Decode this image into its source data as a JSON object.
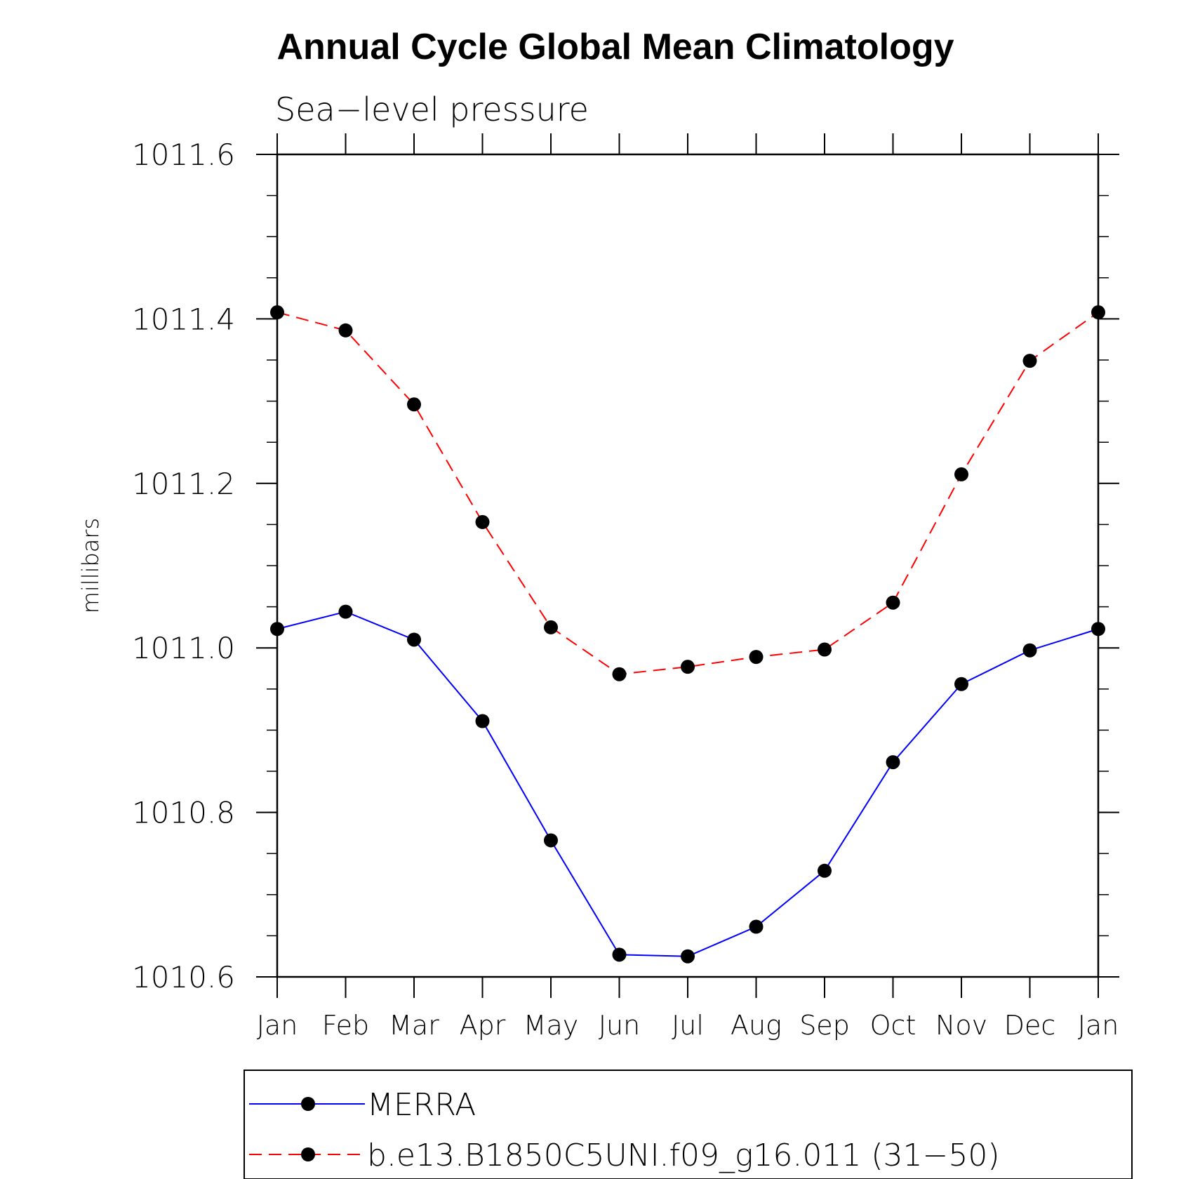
{
  "chart_data": {
    "type": "line",
    "title": "Annual Cycle Global Mean Climatology",
    "subtitle": "Sea−level pressure",
    "xlabel": "",
    "ylabel": "millibars",
    "categories": [
      "Jan",
      "Feb",
      "Mar",
      "Apr",
      "May",
      "Jun",
      "Jul",
      "Aug",
      "Sep",
      "Oct",
      "Nov",
      "Dec",
      "Jan"
    ],
    "ylim": [
      1010.6,
      1011.6
    ],
    "yticks": [
      1010.6,
      1010.8,
      1011.0,
      1011.2,
      1011.4,
      1011.6
    ],
    "ytick_labels": [
      "1010.6",
      "1010.8",
      "1011.0",
      "1011.2",
      "1011.4",
      "1011.6"
    ],
    "grid": false,
    "legend_position": "bottom",
    "series": [
      {
        "name": "MERRA",
        "color": "#0000ff",
        "dash": "solid",
        "marker": "dot",
        "values": [
          1011.023,
          1011.044,
          1011.01,
          1010.911,
          1010.766,
          1010.627,
          1010.625,
          1010.661,
          1010.729,
          1010.861,
          1010.956,
          1010.997,
          1011.023
        ]
      },
      {
        "name": "b.e13.B1850C5UNI.f09_g16.011 (31−50)",
        "color": "#ff0000",
        "dash": "dashed",
        "marker": "dot",
        "values": [
          1011.408,
          1011.386,
          1011.296,
          1011.153,
          1011.025,
          1010.968,
          1010.977,
          1010.989,
          1010.998,
          1011.055,
          1011.211,
          1011.349,
          1011.408
        ]
      }
    ]
  }
}
